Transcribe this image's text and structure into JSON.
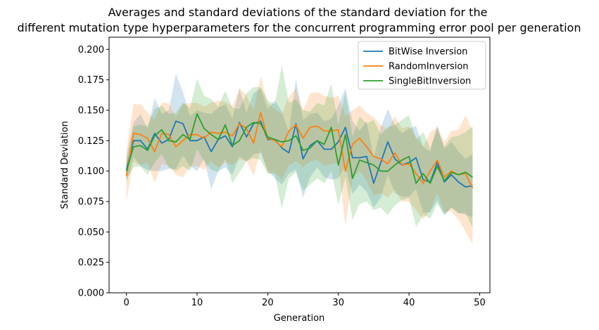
{
  "chart_data": {
    "type": "line",
    "title_lines": [
      "Averages and standard deviations of the standard deviation for the",
      "different mutation type hyperparameters for the concurrent programming error pool per generation"
    ],
    "xlabel": "Generation",
    "ylabel": "Standard Deviation",
    "xlim": [
      -2.45,
      51.45
    ],
    "ylim": [
      0,
      0.21
    ],
    "xticks": [
      0,
      10,
      20,
      30,
      40,
      50
    ],
    "xtick_labels": [
      "0",
      "10",
      "20",
      "30",
      "40",
      "50"
    ],
    "yticks": [
      0,
      0.025,
      0.05,
      0.075,
      0.1,
      0.125,
      0.15,
      0.175,
      0.2
    ],
    "ytick_labels": [
      "0.000",
      "0.025",
      "0.050",
      "0.075",
      "0.100",
      "0.125",
      "0.150",
      "0.175",
      "0.200"
    ],
    "grid": false,
    "legend_position": "upper right",
    "shaded_band": "mean ± standard deviation",
    "x": [
      0,
      1,
      2,
      3,
      4,
      5,
      6,
      7,
      8,
      9,
      10,
      11,
      12,
      13,
      14,
      15,
      16,
      17,
      18,
      19,
      20,
      21,
      22,
      23,
      24,
      25,
      26,
      27,
      28,
      29,
      30,
      31,
      32,
      33,
      34,
      35,
      36,
      37,
      38,
      39,
      40,
      41,
      42,
      43,
      44,
      45,
      46,
      47,
      48,
      49
    ],
    "series": [
      {
        "name": "BitWise Inversion",
        "color": "#1f77b4",
        "band_alpha": 0.2,
        "values": [
          0.101,
          0.125,
          0.125,
          0.118,
          0.131,
          0.123,
          0.126,
          0.141,
          0.139,
          0.125,
          0.125,
          0.128,
          0.116,
          0.126,
          0.129,
          0.12,
          0.14,
          0.128,
          0.139,
          0.141,
          0.126,
          0.126,
          0.119,
          0.115,
          0.139,
          0.11,
          0.121,
          0.125,
          0.118,
          0.118,
          0.124,
          0.136,
          0.111,
          0.111,
          0.112,
          0.09,
          0.107,
          0.124,
          0.11,
          0.105,
          0.107,
          0.111,
          0.093,
          0.091,
          0.107,
          0.091,
          0.097,
          0.091,
          0.087,
          0.088
        ],
        "band_lower": [
          0.09,
          0.112,
          0.104,
          0.101,
          0.1,
          0.1,
          0.102,
          0.102,
          0.113,
          0.104,
          0.1,
          0.11,
          0.085,
          0.1,
          0.103,
          0.097,
          0.112,
          0.108,
          0.114,
          0.115,
          0.101,
          0.094,
          0.089,
          0.098,
          0.101,
          0.078,
          0.095,
          0.103,
          0.095,
          0.093,
          0.094,
          0.104,
          0.081,
          0.089,
          0.083,
          0.07,
          0.078,
          0.097,
          0.082,
          0.079,
          0.079,
          0.085,
          0.066,
          0.066,
          0.076,
          0.064,
          0.07,
          0.066,
          0.064,
          0.062
        ],
        "band_upper": [
          0.112,
          0.14,
          0.147,
          0.135,
          0.16,
          0.147,
          0.15,
          0.18,
          0.165,
          0.145,
          0.15,
          0.148,
          0.147,
          0.152,
          0.155,
          0.143,
          0.168,
          0.148,
          0.164,
          0.168,
          0.151,
          0.158,
          0.149,
          0.132,
          0.176,
          0.142,
          0.147,
          0.148,
          0.141,
          0.143,
          0.154,
          0.168,
          0.141,
          0.133,
          0.141,
          0.11,
          0.136,
          0.151,
          0.138,
          0.131,
          0.135,
          0.137,
          0.12,
          0.116,
          0.138,
          0.118,
          0.124,
          0.116,
          0.11,
          0.114
        ]
      },
      {
        "name": "RandomInversion",
        "color": "#ff7f0e",
        "band_alpha": 0.2,
        "values": [
          0.096,
          0.131,
          0.13,
          0.127,
          0.116,
          0.131,
          0.13,
          0.12,
          0.125,
          0.13,
          0.13,
          0.127,
          0.132,
          0.131,
          0.132,
          0.129,
          0.139,
          0.135,
          0.123,
          0.148,
          0.127,
          0.125,
          0.12,
          0.133,
          0.138,
          0.127,
          0.136,
          0.137,
          0.133,
          0.133,
          0.134,
          0.1,
          0.122,
          0.127,
          0.12,
          0.112,
          0.11,
          0.106,
          0.115,
          0.105,
          0.106,
          0.098,
          0.09,
          0.1,
          0.109,
          0.095,
          0.1,
          0.097,
          0.098,
          0.086
        ],
        "band_lower": [
          0.075,
          0.108,
          0.105,
          0.107,
          0.09,
          0.106,
          0.104,
          0.097,
          0.095,
          0.104,
          0.104,
          0.101,
          0.108,
          0.103,
          0.107,
          0.105,
          0.11,
          0.108,
          0.096,
          0.118,
          0.098,
          0.099,
          0.093,
          0.105,
          0.108,
          0.103,
          0.108,
          0.109,
          0.104,
          0.106,
          0.106,
          0.055,
          0.094,
          0.1,
          0.092,
          0.08,
          0.082,
          0.078,
          0.085,
          0.075,
          0.075,
          0.068,
          0.06,
          0.068,
          0.082,
          0.066,
          0.067,
          0.06,
          0.05,
          0.04
        ],
        "band_upper": [
          0.117,
          0.155,
          0.155,
          0.148,
          0.142,
          0.156,
          0.156,
          0.144,
          0.155,
          0.156,
          0.156,
          0.153,
          0.156,
          0.158,
          0.157,
          0.153,
          0.168,
          0.162,
          0.15,
          0.178,
          0.156,
          0.151,
          0.147,
          0.161,
          0.168,
          0.15,
          0.164,
          0.165,
          0.162,
          0.16,
          0.162,
          0.145,
          0.15,
          0.154,
          0.148,
          0.144,
          0.138,
          0.134,
          0.145,
          0.135,
          0.137,
          0.128,
          0.12,
          0.132,
          0.136,
          0.124,
          0.133,
          0.134,
          0.146,
          0.133
        ]
      },
      {
        "name": "SingleBitInversion",
        "color": "#2ca02c",
        "band_alpha": 0.2,
        "values": [
          0.1,
          0.12,
          0.121,
          0.117,
          0.129,
          0.134,
          0.125,
          0.124,
          0.13,
          0.126,
          0.147,
          0.135,
          0.13,
          0.126,
          0.138,
          0.121,
          0.125,
          0.136,
          0.14,
          0.139,
          0.128,
          0.126,
          0.124,
          0.125,
          0.129,
          0.117,
          0.119,
          0.125,
          0.122,
          0.136,
          0.105,
          0.13,
          0.094,
          0.109,
          0.107,
          0.105,
          0.1,
          0.1,
          0.105,
          0.109,
          0.112,
          0.09,
          0.098,
          0.09,
          0.104,
          0.092,
          0.099,
          0.097,
          0.099,
          0.095
        ],
        "band_lower": [
          0.093,
          0.103,
          0.104,
          0.097,
          0.107,
          0.114,
          0.103,
          0.1,
          0.104,
          0.1,
          0.118,
          0.108,
          0.101,
          0.099,
          0.11,
          0.09,
          0.099,
          0.108,
          0.111,
          0.109,
          0.098,
          0.097,
          0.069,
          0.094,
          0.099,
          0.084,
          0.089,
          0.094,
          0.09,
          0.1,
          0.072,
          0.095,
          0.06,
          0.073,
          0.075,
          0.068,
          0.07,
          0.064,
          0.072,
          0.076,
          0.078,
          0.054,
          0.064,
          0.061,
          0.073,
          0.064,
          0.07,
          0.065,
          0.066,
          0.053
        ],
        "band_upper": [
          0.107,
          0.137,
          0.138,
          0.137,
          0.151,
          0.154,
          0.147,
          0.148,
          0.156,
          0.152,
          0.176,
          0.162,
          0.159,
          0.153,
          0.166,
          0.152,
          0.151,
          0.164,
          0.169,
          0.169,
          0.158,
          0.155,
          0.187,
          0.156,
          0.159,
          0.15,
          0.149,
          0.156,
          0.154,
          0.172,
          0.138,
          0.165,
          0.128,
          0.145,
          0.139,
          0.142,
          0.13,
          0.136,
          0.138,
          0.142,
          0.146,
          0.126,
          0.132,
          0.119,
          0.135,
          0.12,
          0.128,
          0.129,
          0.132,
          0.137
        ]
      }
    ]
  }
}
